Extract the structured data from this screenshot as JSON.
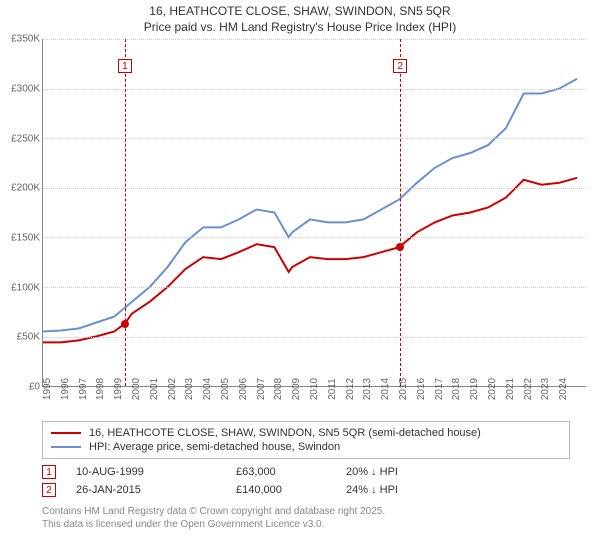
{
  "title_line1": "16, HEATHCOTE CLOSE, SHAW, SWINDON, SN5 5QR",
  "title_line2": "Price paid vs. HM Land Registry's House Price Index (HPI)",
  "chart": {
    "type": "line",
    "background_color": "#ffffff",
    "grid_color": "#cccccc",
    "axis_color": "#888888",
    "xlim": [
      1995,
      2025.5
    ],
    "ylim": [
      0,
      350000
    ],
    "ytick_step": 50000,
    "yticks": [
      "£0",
      "£50K",
      "£100K",
      "£150K",
      "£200K",
      "£250K",
      "£300K",
      "£350K"
    ],
    "xticks": [
      1995,
      1996,
      1997,
      1998,
      1999,
      2000,
      2001,
      2002,
      2003,
      2004,
      2005,
      2006,
      2007,
      2008,
      2009,
      2010,
      2011,
      2012,
      2013,
      2014,
      2015,
      2016,
      2017,
      2018,
      2019,
      2020,
      2021,
      2022,
      2023,
      2024
    ],
    "series": [
      {
        "label": "16, HEATHCOTE CLOSE, SHAW, SWINDON, SN5 5QR (semi-detached house)",
        "color": "#cc0000",
        "width": 2,
        "data": [
          [
            1995,
            44000
          ],
          [
            1996,
            44000
          ],
          [
            1997,
            46000
          ],
          [
            1998,
            50000
          ],
          [
            1999,
            55000
          ],
          [
            1999.6,
            63000
          ],
          [
            2000,
            73000
          ],
          [
            2001,
            85000
          ],
          [
            2002,
            100000
          ],
          [
            2003,
            118000
          ],
          [
            2004,
            130000
          ],
          [
            2005,
            128000
          ],
          [
            2006,
            135000
          ],
          [
            2007,
            143000
          ],
          [
            2008,
            140000
          ],
          [
            2008.8,
            115000
          ],
          [
            2009,
            120000
          ],
          [
            2010,
            130000
          ],
          [
            2011,
            128000
          ],
          [
            2012,
            128000
          ],
          [
            2013,
            130000
          ],
          [
            2014,
            135000
          ],
          [
            2015,
            140000
          ],
          [
            2016,
            155000
          ],
          [
            2017,
            165000
          ],
          [
            2018,
            172000
          ],
          [
            2019,
            175000
          ],
          [
            2020,
            180000
          ],
          [
            2021,
            190000
          ],
          [
            2022,
            208000
          ],
          [
            2023,
            203000
          ],
          [
            2024,
            205000
          ],
          [
            2025,
            210000
          ]
        ]
      },
      {
        "label": "HPI: Average price, semi-detached house, Swindon",
        "color": "#6a8fd6",
        "width": 2,
        "data": [
          [
            1995,
            55000
          ],
          [
            1996,
            56000
          ],
          [
            1997,
            58000
          ],
          [
            1998,
            64000
          ],
          [
            1999,
            70000
          ],
          [
            2000,
            85000
          ],
          [
            2001,
            100000
          ],
          [
            2002,
            120000
          ],
          [
            2003,
            145000
          ],
          [
            2004,
            160000
          ],
          [
            2005,
            160000
          ],
          [
            2006,
            168000
          ],
          [
            2007,
            178000
          ],
          [
            2008,
            175000
          ],
          [
            2008.8,
            150000
          ],
          [
            2009,
            155000
          ],
          [
            2010,
            168000
          ],
          [
            2011,
            165000
          ],
          [
            2012,
            165000
          ],
          [
            2013,
            168000
          ],
          [
            2014,
            178000
          ],
          [
            2015,
            188000
          ],
          [
            2016,
            205000
          ],
          [
            2017,
            220000
          ],
          [
            2018,
            230000
          ],
          [
            2019,
            235000
          ],
          [
            2020,
            243000
          ],
          [
            2021,
            260000
          ],
          [
            2022,
            295000
          ],
          [
            2023,
            295000
          ],
          [
            2024,
            300000
          ],
          [
            2025,
            310000
          ]
        ]
      }
    ],
    "markers": [
      {
        "n": "1",
        "x": 1999.6,
        "y": 63000,
        "color": "#cc0000"
      },
      {
        "n": "2",
        "x": 2015.07,
        "y": 140000,
        "color": "#cc0000"
      }
    ]
  },
  "sales": [
    {
      "n": "1",
      "date": "10-AUG-1999",
      "price": "£63,000",
      "delta": "20% ↓ HPI",
      "color": "#cc0000"
    },
    {
      "n": "2",
      "date": "26-JAN-2015",
      "price": "£140,000",
      "delta": "24% ↓ HPI",
      "color": "#cc0000"
    }
  ],
  "footer_line1": "Contains HM Land Registry data © Crown copyright and database right 2025.",
  "footer_line2": "This data is licensed under the Open Government Licence v3.0."
}
